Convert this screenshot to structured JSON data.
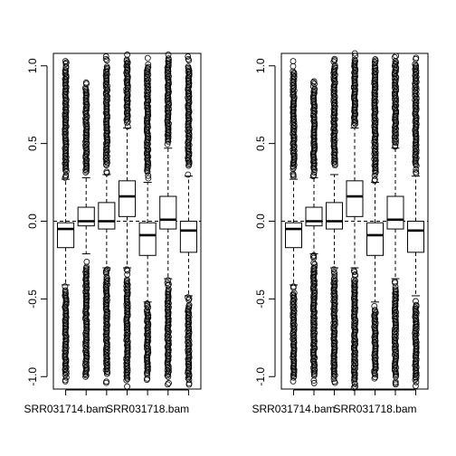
{
  "chart_data": [
    {
      "type": "box",
      "x_tick_labels": [
        {
          "index": 0,
          "label": "SRR031714.bam"
        },
        {
          "index": 4,
          "label": "SRR031718.bam"
        }
      ],
      "y_ticks": [
        {
          "value": -1.0,
          "label": "-1.0"
        },
        {
          "value": -0.5,
          "label": "-0.5"
        },
        {
          "value": 0.0,
          "label": "0.0"
        },
        {
          "value": 0.5,
          "label": "0.5"
        },
        {
          "value": 1.0,
          "label": "1.0"
        }
      ],
      "ylim": [
        -1.08,
        1.08
      ],
      "reference_line": 0,
      "boxes": [
        {
          "q1": -0.17,
          "median": -0.05,
          "q3": -0.01,
          "whisker_low": -0.41,
          "whisker_high": 0.27,
          "outlier_low": -1.03,
          "outlier_high": 1.03
        },
        {
          "q1": -0.03,
          "median": 0.0,
          "q3": 0.09,
          "whisker_low": -0.21,
          "whisker_high": 0.28,
          "outlier_low": -1.05,
          "outlier_high": 0.9
        },
        {
          "q1": -0.05,
          "median": 0.0,
          "q3": 0.12,
          "whisker_low": -0.3,
          "whisker_high": 0.3,
          "outlier_low": -1.04,
          "outlier_high": 1.06
        },
        {
          "q1": 0.03,
          "median": 0.16,
          "q3": 0.26,
          "whisker_low": -0.3,
          "whisker_high": 0.6,
          "outlier_low": -1.08,
          "outlier_high": 1.08
        },
        {
          "q1": -0.22,
          "median": -0.09,
          "q3": -0.01,
          "whisker_low": -0.52,
          "whisker_high": 0.25,
          "outlier_low": -1.02,
          "outlier_high": 1.05
        },
        {
          "q1": -0.05,
          "median": 0.01,
          "q3": 0.16,
          "whisker_low": -0.37,
          "whisker_high": 0.47,
          "outlier_low": -1.05,
          "outlier_high": 1.08
        },
        {
          "q1": -0.2,
          "median": -0.06,
          "q3": 0.0,
          "whisker_low": -0.48,
          "whisker_high": 0.29,
          "outlier_low": -1.06,
          "outlier_high": 1.06
        }
      ]
    },
    {
      "type": "box",
      "x_tick_labels": [
        {
          "index": 0,
          "label": "SRR031714.bam"
        },
        {
          "index": 4,
          "label": "SRR031718.bam"
        }
      ],
      "y_ticks": [
        {
          "value": -1.0,
          "label": "-1.0"
        },
        {
          "value": -0.5,
          "label": "-0.5"
        },
        {
          "value": 0.0,
          "label": "0.0"
        },
        {
          "value": 0.5,
          "label": "0.5"
        },
        {
          "value": 1.0,
          "label": "1.0"
        }
      ],
      "ylim": [
        -1.08,
        1.08
      ],
      "reference_line": 0,
      "boxes": [
        {
          "q1": -0.17,
          "median": -0.05,
          "q3": -0.01,
          "whisker_low": -0.41,
          "whisker_high": 0.27,
          "outlier_low": -1.03,
          "outlier_high": 1.03
        },
        {
          "q1": -0.03,
          "median": 0.0,
          "q3": 0.09,
          "whisker_low": -0.21,
          "whisker_high": 0.28,
          "outlier_low": -1.05,
          "outlier_high": 0.9
        },
        {
          "q1": -0.05,
          "median": 0.0,
          "q3": 0.12,
          "whisker_low": -0.3,
          "whisker_high": 0.3,
          "outlier_low": -1.04,
          "outlier_high": 1.06
        },
        {
          "q1": 0.03,
          "median": 0.16,
          "q3": 0.26,
          "whisker_low": -0.3,
          "whisker_high": 0.6,
          "outlier_low": -1.08,
          "outlier_high": 1.08
        },
        {
          "q1": -0.22,
          "median": -0.09,
          "q3": -0.01,
          "whisker_low": -0.52,
          "whisker_high": 0.25,
          "outlier_low": -1.02,
          "outlier_high": 1.05
        },
        {
          "q1": -0.05,
          "median": 0.01,
          "q3": 0.16,
          "whisker_low": -0.37,
          "whisker_high": 0.47,
          "outlier_low": -1.05,
          "outlier_high": 1.08
        },
        {
          "q1": -0.2,
          "median": -0.06,
          "q3": 0.0,
          "whisker_low": -0.48,
          "whisker_high": 0.29,
          "outlier_low": -1.06,
          "outlier_high": 1.06
        }
      ]
    }
  ]
}
